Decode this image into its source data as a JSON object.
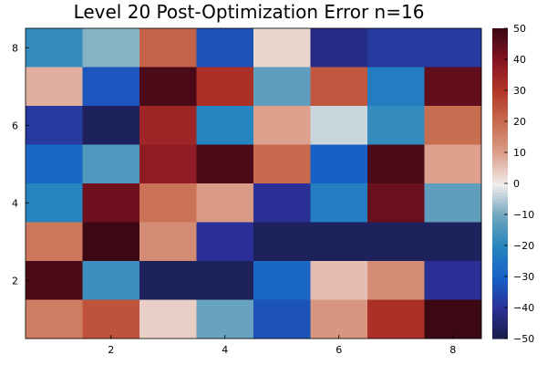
{
  "chart_data": {
    "type": "heatmap",
    "title": "Level 20 Post-Optimization Error n=16",
    "xlabel": "",
    "ylabel": "",
    "x_ticks": [
      "2",
      "4",
      "6",
      "8"
    ],
    "y_ticks": [
      "2",
      "4",
      "6",
      "8"
    ],
    "xlim": [
      0.5,
      8.5
    ],
    "ylim": [
      0.5,
      8.5
    ],
    "colorbar": {
      "min": -50,
      "max": 50,
      "ticks": [
        "50",
        "40",
        "30",
        "20",
        "10",
        "0",
        "−10",
        "−20",
        "−30",
        "−40",
        "−50"
      ],
      "colormap": "balance"
    },
    "grid": false,
    "values_by_row_top_to_bottom": [
      [
        -18,
        -8,
        22,
        -33,
        3,
        -42,
        -38,
        -38
      ],
      [
        8,
        -32,
        48,
        32,
        -12,
        24,
        -22,
        45
      ],
      [
        -38,
        -47,
        35,
        -20,
        10,
        -3,
        -18,
        20
      ],
      [
        -28,
        -14,
        38,
        48,
        21,
        -30,
        48,
        10
      ],
      [
        -20,
        43,
        19,
        11,
        -40,
        -22,
        44,
        -12
      ],
      [
        18,
        50,
        14,
        -40,
        -47,
        -47,
        -47,
        -47
      ],
      [
        48,
        -17,
        -47,
        -47,
        -28,
        6,
        14,
        -40
      ],
      [
        17,
        25,
        4,
        -11,
        -33,
        12,
        32,
        50
      ]
    ]
  }
}
